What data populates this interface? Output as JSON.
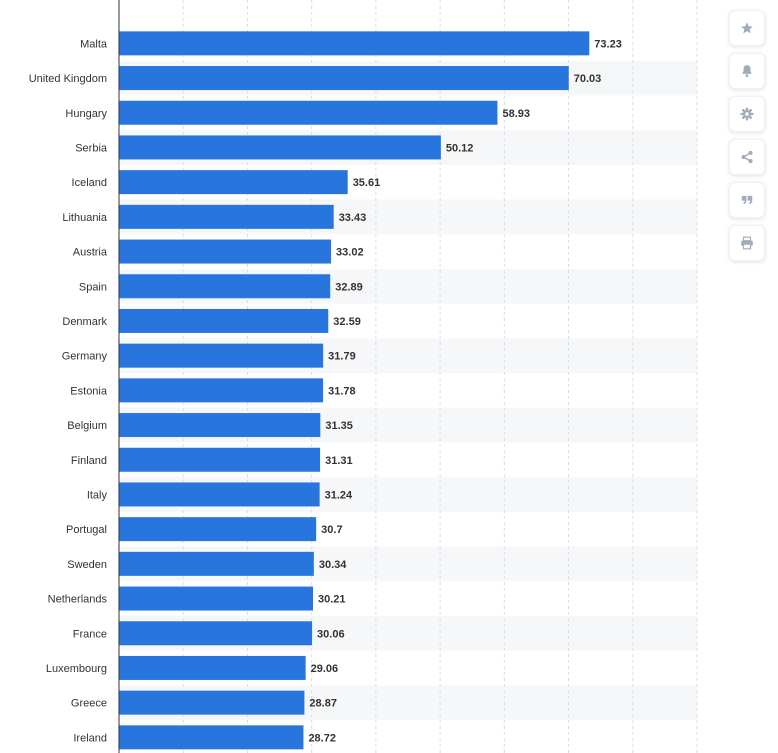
{
  "chart_data": {
    "type": "bar",
    "orientation": "horizontal",
    "categories": [
      "Malta",
      "United Kingdom",
      "Hungary",
      "Serbia",
      "Iceland",
      "Lithuania",
      "Austria",
      "Spain",
      "Denmark",
      "Germany",
      "Estonia",
      "Belgium",
      "Finland",
      "Italy",
      "Portugal",
      "Sweden",
      "Netherlands",
      "France",
      "Luxembourg",
      "Greece",
      "Ireland"
    ],
    "values": [
      73.23,
      70.03,
      58.93,
      50.12,
      35.61,
      33.43,
      33.02,
      32.89,
      32.59,
      31.79,
      31.78,
      31.35,
      31.31,
      31.24,
      30.7,
      30.34,
      30.21,
      30.06,
      29.06,
      28.87,
      28.72
    ],
    "value_labels": [
      "73.23",
      "70.03",
      "58.93",
      "50.12",
      "35.61",
      "33.43",
      "33.02",
      "32.89",
      "32.59",
      "31.79",
      "31.78",
      "31.35",
      "31.31",
      "31.24",
      "30.7",
      "30.34",
      "30.21",
      "30.06",
      "29.06",
      "28.87",
      "28.72"
    ],
    "xlim": [
      0,
      90
    ],
    "grid": true,
    "grid_step": 10,
    "bar_color": "#2876dd",
    "title": "",
    "xlabel": "",
    "ylabel": ""
  },
  "toolbar": {
    "buttons": [
      {
        "name": "favorite",
        "icon": "star-icon"
      },
      {
        "name": "notification",
        "icon": "bell-icon"
      },
      {
        "name": "settings",
        "icon": "gear-icon"
      },
      {
        "name": "share",
        "icon": "share-icon"
      },
      {
        "name": "cite",
        "icon": "quote-icon"
      },
      {
        "name": "print",
        "icon": "print-icon"
      }
    ],
    "icon_color": "#a3acb9"
  }
}
